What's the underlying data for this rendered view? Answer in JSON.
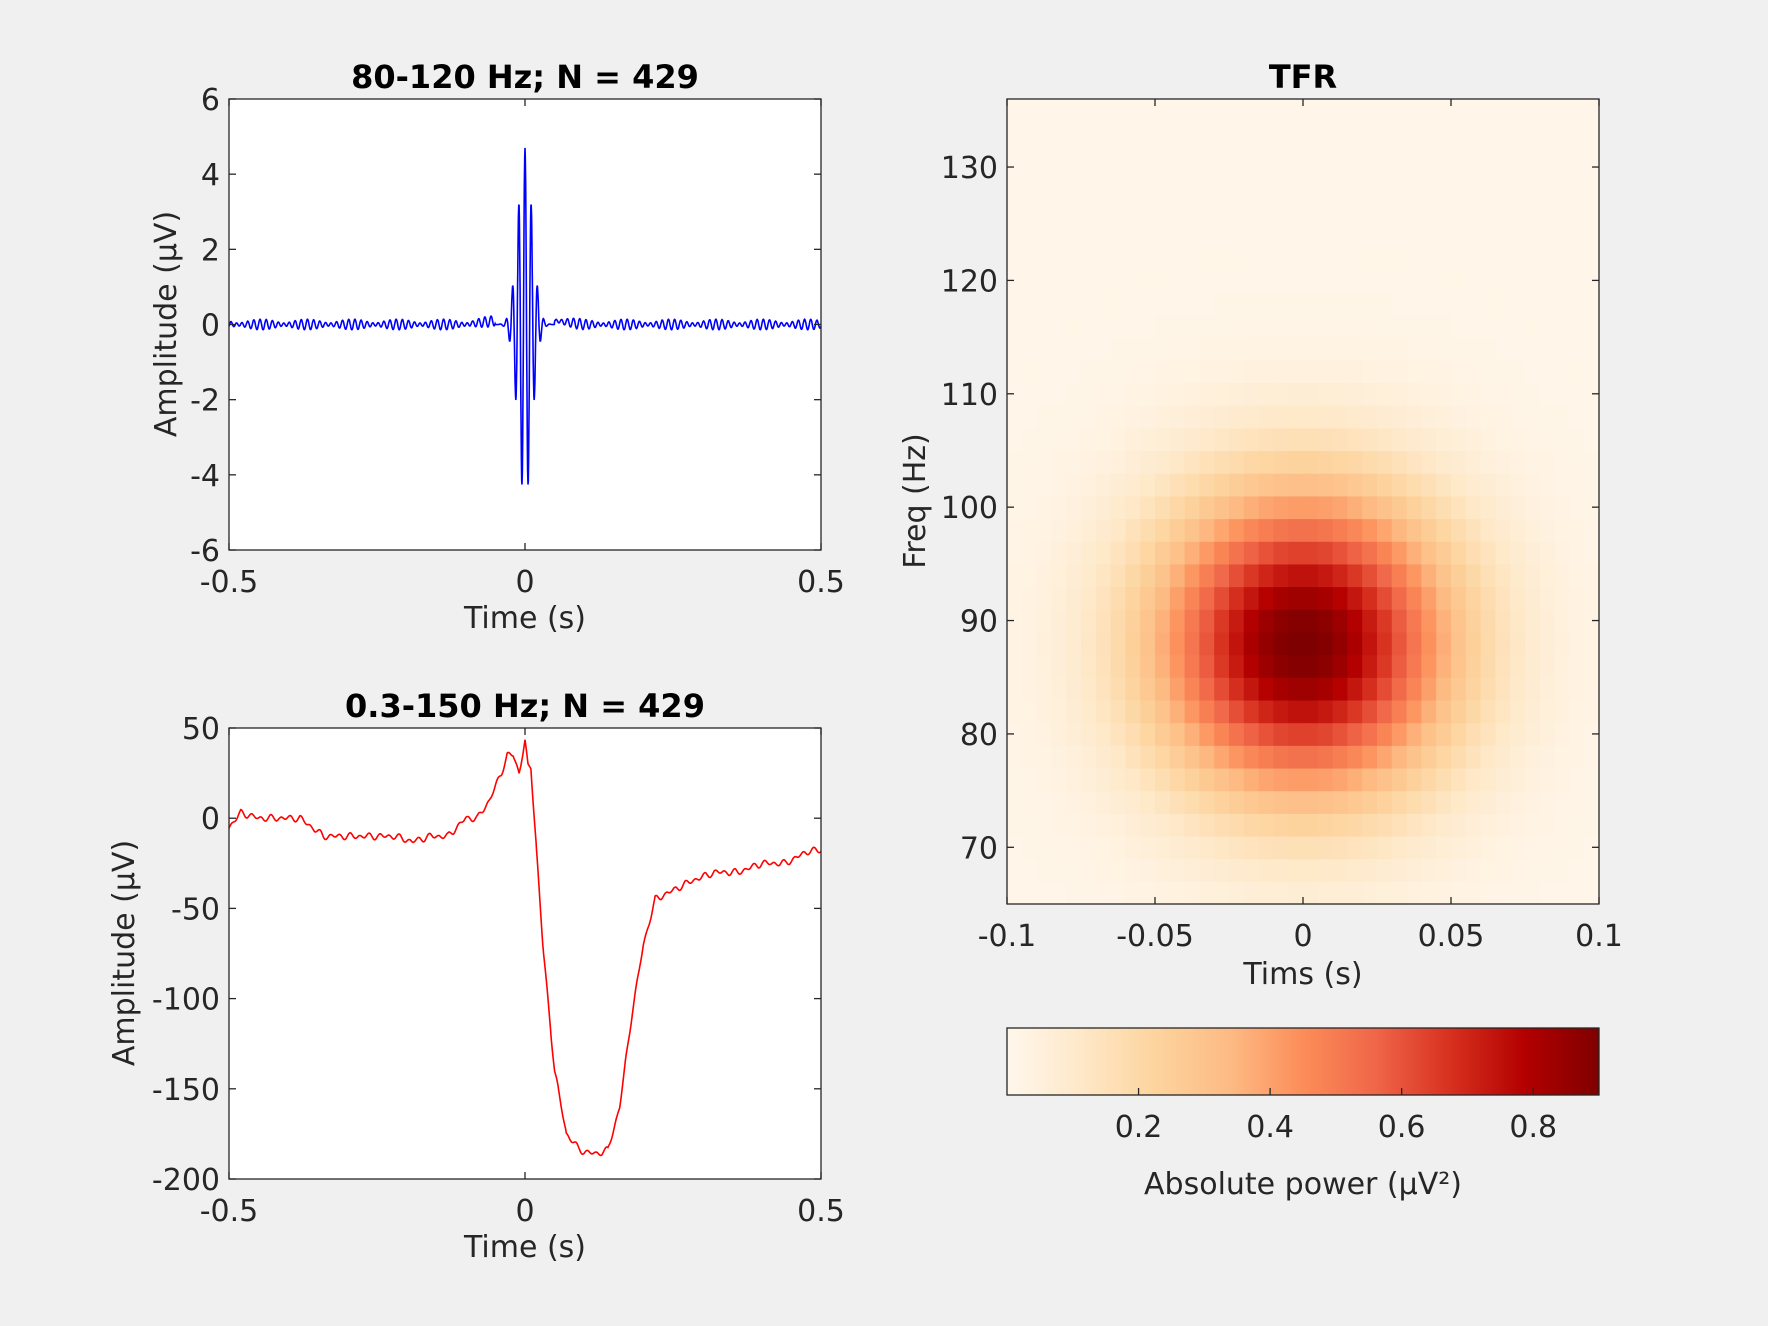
{
  "chart_data": [
    {
      "type": "line",
      "title": "80-120 Hz; N = 429",
      "xlabel": "Time (s)",
      "ylabel": "Amplitude (μV)",
      "xlim": [
        -0.5,
        0.5
      ],
      "ylim": [
        -6,
        6
      ],
      "xticks": [
        -0.5,
        0,
        0.5
      ],
      "xtick_labels": [
        "-0.5",
        "0",
        "0.5"
      ],
      "yticks": [
        -6,
        -4,
        -2,
        0,
        2,
        4,
        6
      ],
      "ytick_labels": [
        "-6",
        "-4",
        "-2",
        "0",
        "2",
        "4",
        "6"
      ],
      "line_color": "#0000ff",
      "grid": false,
      "series": [
        {
          "x": [
            -0.5,
            -0.1,
            -0.05,
            -0.04,
            -0.03,
            -0.02,
            -0.01,
            0.0,
            0.01,
            0.02,
            0.03,
            0.04,
            0.05,
            0.1,
            0.5
          ],
          "y": [
            0.0,
            0.0,
            0.1,
            0.4,
            0.9,
            2.9,
            -4.2,
            5.1,
            -4.2,
            3.0,
            0.9,
            -0.3,
            0.1,
            0.0,
            0.0
          ]
        }
      ]
    },
    {
      "type": "line",
      "title": "0.3-150 Hz; N = 429",
      "xlabel": "Time (s)",
      "ylabel": "Amplitude (μV)",
      "xlim": [
        -0.5,
        0.5
      ],
      "ylim": [
        -200,
        50
      ],
      "xticks": [
        -0.5,
        0,
        0.5
      ],
      "xtick_labels": [
        "-0.5",
        "0",
        "0.5"
      ],
      "yticks": [
        -200,
        -150,
        -100,
        -50,
        0,
        50
      ],
      "ytick_labels": [
        "-200",
        "-150",
        "-100",
        "-50",
        "0",
        "50"
      ],
      "line_color": "#ff0000",
      "grid": false,
      "series": [
        {
          "x": [
            -0.5,
            -0.48,
            -0.45,
            -0.42,
            -0.38,
            -0.34,
            -0.3,
            -0.26,
            -0.22,
            -0.19,
            -0.16,
            -0.13,
            -0.1,
            -0.08,
            -0.06,
            -0.04,
            -0.03,
            -0.02,
            -0.01,
            0.0,
            0.005,
            0.01,
            0.02,
            0.03,
            0.05,
            0.07,
            0.09,
            0.1,
            0.12,
            0.14,
            0.16,
            0.18,
            0.2,
            0.22,
            0.25,
            0.28,
            0.32,
            0.36,
            0.4,
            0.44,
            0.48,
            0.5
          ],
          "y": [
            -5,
            3,
            0,
            0,
            0,
            -10,
            -10,
            -10,
            -10,
            -13,
            -10,
            -10,
            0,
            0,
            10,
            25,
            35,
            35,
            25,
            43,
            28,
            28,
            -20,
            -70,
            -140,
            -175,
            -183,
            -185,
            -186,
            -184,
            -160,
            -110,
            -70,
            -45,
            -40,
            -35,
            -30,
            -30,
            -25,
            -25,
            -18,
            -18
          ]
        }
      ]
    },
    {
      "type": "heatmap",
      "title": "TFR",
      "xlabel": "Tims (s)",
      "ylabel": "Freq (Hz)",
      "xlim": [
        -0.1,
        0.1
      ],
      "ylim": [
        65,
        136
      ],
      "xticks": [
        -0.1,
        -0.05,
        0,
        0.05,
        0.1
      ],
      "xtick_labels": [
        "-0.1",
        "-0.05",
        "0",
        "0.05",
        "0.1"
      ],
      "yticks": [
        70,
        80,
        90,
        100,
        110,
        120,
        130
      ],
      "ytick_labels": [
        "70",
        "80",
        "90",
        "100",
        "110",
        "120",
        "130"
      ],
      "peak": {
        "time": 0.0,
        "freq": 88,
        "power": 0.9
      },
      "colorbar": {
        "label": "Absolute power (μV²)",
        "range": [
          0.0,
          0.9
        ],
        "ticks": [
          0.2,
          0.4,
          0.6,
          0.8
        ],
        "tick_labels": [
          "0.2",
          "0.4",
          "0.6",
          "0.8"
        ],
        "colormap": [
          "#fff7ec",
          "#fee8c8",
          "#fdd49e",
          "#fdbb84",
          "#fc8d59",
          "#ef6548",
          "#d7301f",
          "#b30000",
          "#7f0000"
        ]
      }
    }
  ]
}
